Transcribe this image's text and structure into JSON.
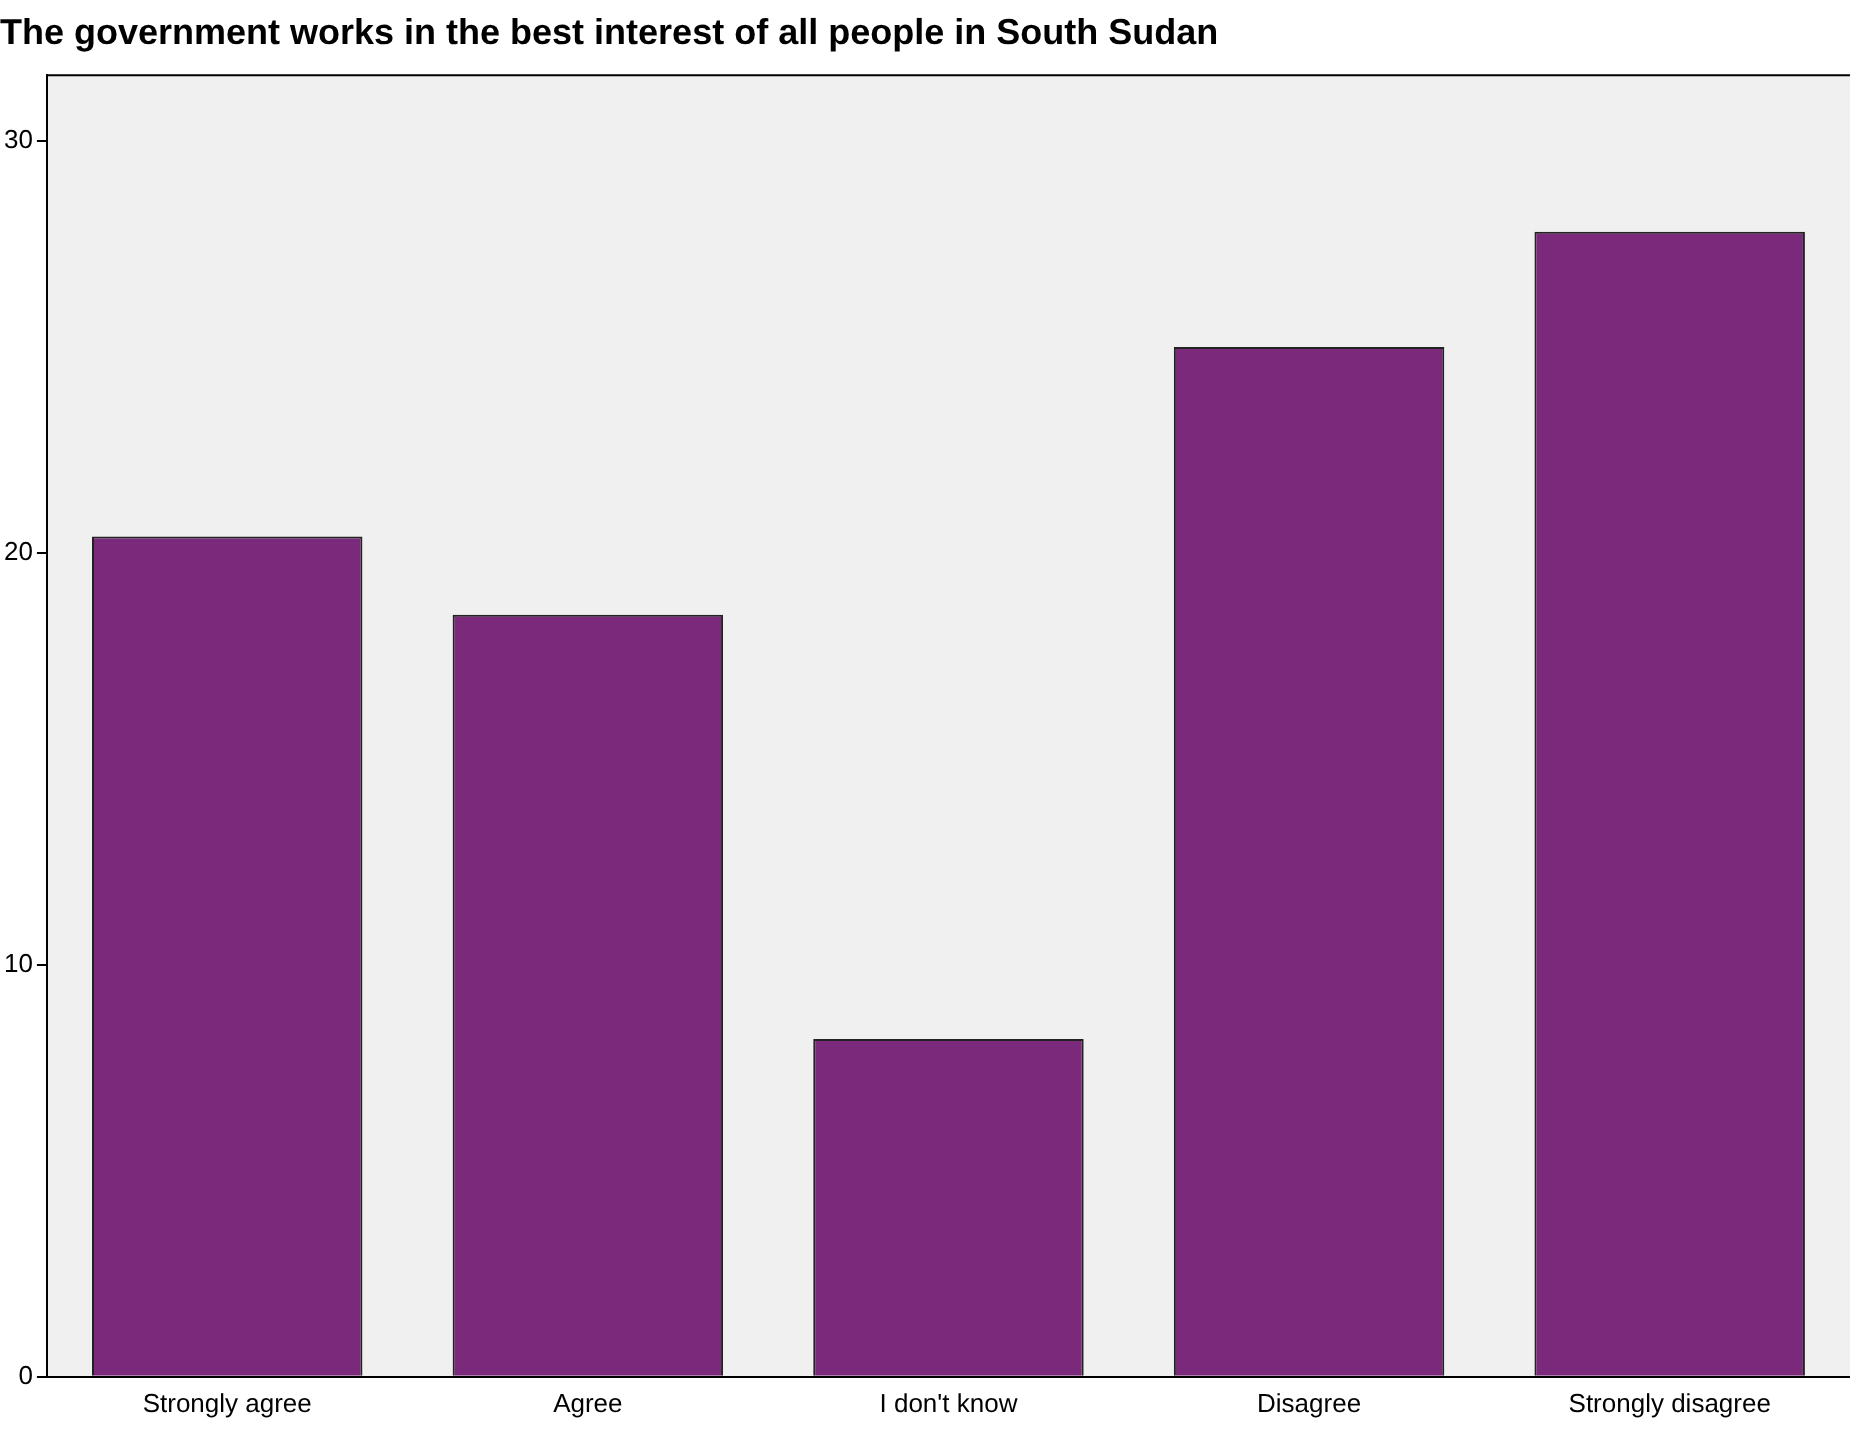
{
  "chart_data": {
    "type": "bar",
    "title": "The government works in the best interest of all people in South Sudan",
    "categories": [
      "Strongly agree",
      "Agree",
      "I don't know",
      "Disagree",
      "Strongly disagree"
    ],
    "values": [
      20.4,
      18.5,
      8.2,
      25.0,
      27.8
    ],
    "color": "#7b2a7b",
    "ylim": [
      0,
      31.6
    ],
    "yticks": [
      0,
      10,
      20,
      30
    ],
    "grid": false,
    "legend": false
  }
}
